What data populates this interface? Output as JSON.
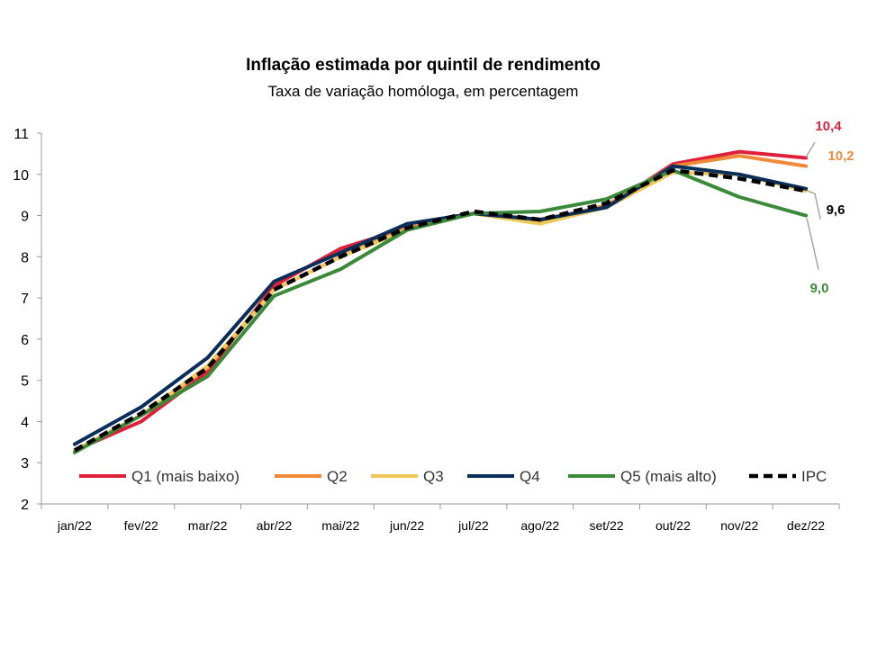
{
  "chart_data": {
    "type": "line",
    "title": "Inflação estimada por quintil de rendimento",
    "subtitle": "Taxa de variação homóloga, em percentagem",
    "xlabel": "",
    "ylabel": "",
    "ylim": [
      2,
      11
    ],
    "yticks": [
      "2",
      "3",
      "4",
      "5",
      "6",
      "7",
      "8",
      "9",
      "10",
      "11"
    ],
    "categories": [
      "jan/22",
      "fev/22",
      "mar/22",
      "abr/22",
      "mai/22",
      "jun/22",
      "jul/22",
      "ago/22",
      "set/22",
      "out/22",
      "nov/22",
      "dez/22"
    ],
    "grid": false,
    "legend": "bottom",
    "series": [
      {
        "name": "Q1 (mais baixo)",
        "color": "#e0203a",
        "dash": false,
        "values": [
          3.3,
          4.0,
          5.2,
          7.3,
          8.2,
          8.7,
          9.05,
          8.9,
          9.2,
          10.25,
          10.55,
          10.4
        ]
      },
      {
        "name": "Q2",
        "color": "#ee8a3a",
        "dash": false,
        "values": [
          3.3,
          4.15,
          5.3,
          7.2,
          8.0,
          8.7,
          9.05,
          8.85,
          9.25,
          10.2,
          10.45,
          10.2
        ]
      },
      {
        "name": "Q3",
        "color": "#f0c85a",
        "dash": false,
        "values": [
          3.3,
          4.15,
          5.35,
          7.2,
          8.0,
          8.65,
          9.05,
          8.8,
          9.2,
          10.05,
          10.0,
          9.6
        ]
      },
      {
        "name": "Q4",
        "color": "#0a2e5a",
        "dash": false,
        "values": [
          3.45,
          4.35,
          5.55,
          7.4,
          8.1,
          8.8,
          9.05,
          8.9,
          9.2,
          10.2,
          10.0,
          9.65
        ]
      },
      {
        "name": "Q5 (mais alto)",
        "color": "#3a8a3a",
        "dash": false,
        "values": [
          3.25,
          4.15,
          5.1,
          7.05,
          7.7,
          8.65,
          9.05,
          9.1,
          9.4,
          10.1,
          9.45,
          9.0
        ]
      },
      {
        "name": "IPC",
        "color": "#000000",
        "dash": true,
        "values": [
          3.3,
          4.2,
          5.3,
          7.2,
          8.0,
          8.7,
          9.1,
          8.9,
          9.3,
          10.1,
          9.9,
          9.6
        ]
      }
    ],
    "annotations": [
      {
        "text": "10,4",
        "color": "#e0203a"
      },
      {
        "text": "10,2",
        "color": "#ee8a3a"
      },
      {
        "text": "9,6",
        "color": "#000000"
      },
      {
        "text": "9,0",
        "color": "#3a8a3a"
      }
    ]
  }
}
